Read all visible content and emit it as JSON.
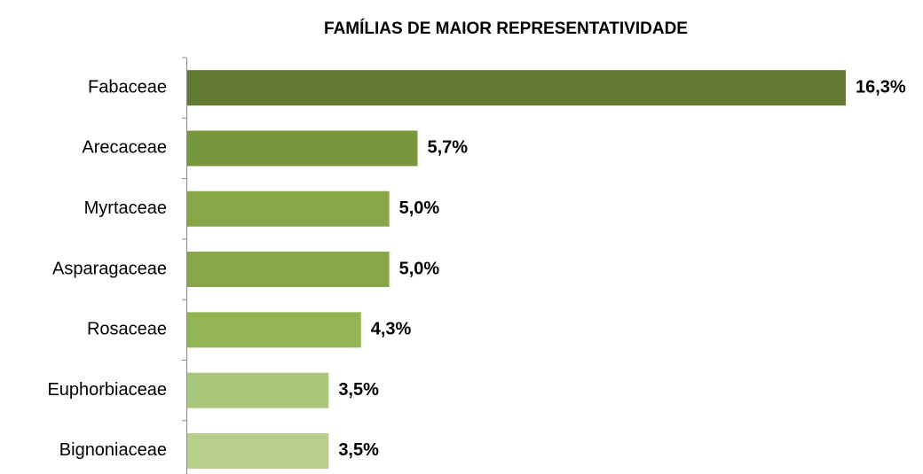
{
  "chart_data": {
    "type": "hbar",
    "title": "FAMÍLIAS DE MAIOR REPRESENTATIVIDADE",
    "categories": [
      "Fabaceae",
      "Arecaceae",
      "Myrtaceae",
      "Asparagaceae",
      "Rosaceae",
      "Euphorbiaceae",
      "Bignoniaceae"
    ],
    "values": [
      16.3,
      5.7,
      5.0,
      5.0,
      4.3,
      3.5,
      3.5
    ],
    "value_labels": [
      "16,3%",
      "5,7%",
      "5,0%",
      "5,0%",
      "4,3%",
      "3,5%",
      "3,5%"
    ],
    "colors": [
      "#637a35",
      "#77973d",
      "#86a648",
      "#86a648",
      "#93b554",
      "#a9c77a",
      "#b7cf8b"
    ]
  }
}
